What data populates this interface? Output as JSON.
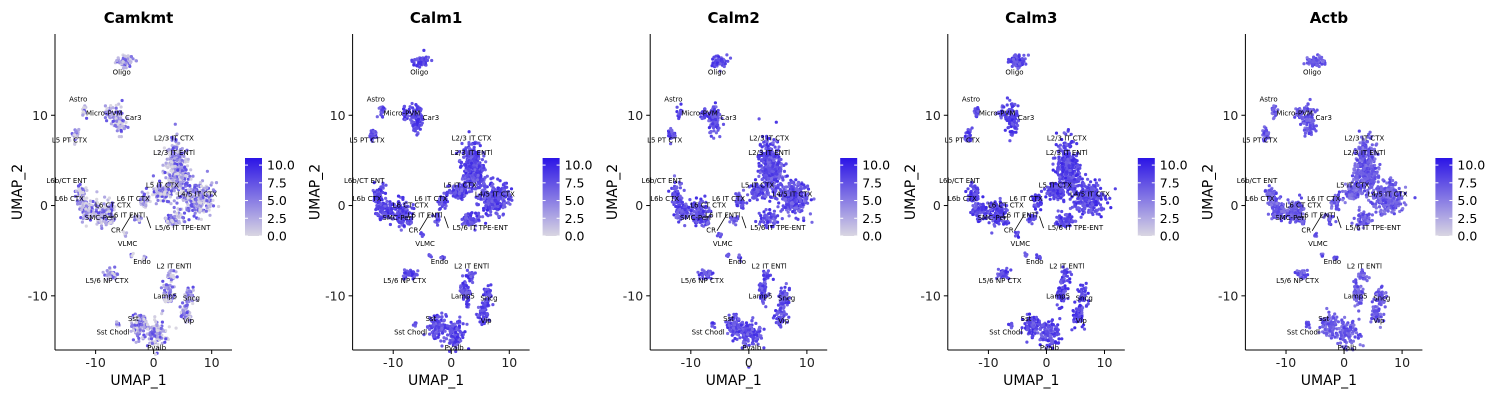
{
  "chart_data": {
    "type": "scatter",
    "xlabel": "UMAP_1",
    "ylabel": "UMAP_2",
    "xlim": [
      -17,
      13.5
    ],
    "ylim": [
      -16,
      19
    ],
    "xticks": [
      -10,
      0,
      10
    ],
    "yticks": [
      -10,
      0,
      10
    ],
    "xtick_labels": [
      "-10",
      "0",
      "10"
    ],
    "ytick_labels": [
      "-10",
      "0",
      "10"
    ],
    "grid": false,
    "colorscale": {
      "low": "#d9d6e2",
      "high": "#2b14e6"
    },
    "legend": {
      "ticks": [
        10.0,
        7.5,
        5.0,
        2.5,
        0.0
      ],
      "labels": [
        "10.0",
        "7.5",
        "5.0",
        "2.5",
        "0.0"
      ],
      "min": 0,
      "max": 11,
      "position": "right"
    },
    "panels": [
      {
        "title": "Camkmt",
        "level": 0.3
      },
      {
        "title": "Calm1",
        "level": 0.72
      },
      {
        "title": "Calm2",
        "level": 0.7
      },
      {
        "title": "Calm3",
        "level": 0.74
      },
      {
        "title": "Actb",
        "level": 0.62
      }
    ],
    "clusters": [
      {
        "name": "Oligo",
        "label_at": [
          -5.5,
          14.5
        ],
        "center": [
          -5,
          16
        ],
        "spread": [
          1.4,
          0.6
        ],
        "n": 40
      },
      {
        "name": "Astro",
        "label_at": [
          -13,
          11.5
        ],
        "center": [
          -12,
          10.4
        ],
        "spread": [
          0.4,
          0.6
        ],
        "n": 12
      },
      {
        "name": "Micro-PVM",
        "label_at": [
          -8.5,
          10
        ],
        "center": [
          -7.8,
          10.2
        ],
        "spread": [
          0.6,
          0.6
        ],
        "n": 15
      },
      {
        "name": "Car3",
        "label_at": [
          -3.5,
          9.5
        ],
        "center": [
          -6,
          9.5
        ],
        "spread": [
          1.0,
          1.4
        ],
        "n": 60
      },
      {
        "name": "L5 PT CTX",
        "label_at": [
          -14.5,
          7
        ],
        "center": [
          -13.5,
          7.8
        ],
        "spread": [
          0.5,
          0.7
        ],
        "n": 18
      },
      {
        "name": "L2/3 IT CTX",
        "label_at": [
          3.5,
          7.2
        ],
        "center": [
          3.5,
          4.5
        ],
        "spread": [
          1.6,
          2.6
        ],
        "n": 150
      },
      {
        "name": "L2/3 IT ENTl",
        "label_at": [
          3.5,
          5.6
        ],
        "center": [
          4.5,
          3.5
        ],
        "spread": [
          1.5,
          1.6
        ],
        "n": 70
      },
      {
        "name": "L6b/CT ENT",
        "label_at": [
          -15,
          2.5
        ],
        "center": [
          -12.5,
          1.2
        ],
        "spread": [
          1.0,
          1.0
        ],
        "n": 35
      },
      {
        "name": "L6b CTX",
        "label_at": [
          -14.5,
          0.5
        ],
        "center": [
          -11.5,
          -0.5
        ],
        "spread": [
          1.3,
          1.0
        ],
        "n": 55
      },
      {
        "name": "L6 CT CTX",
        "label_at": [
          -7,
          -0.2
        ],
        "center": [
          -8.5,
          -0.8
        ],
        "spread": [
          1.5,
          1.2
        ],
        "n": 70
      },
      {
        "name": "L5 IT CTX",
        "label_at": [
          1.5,
          2
        ],
        "center": [
          1.5,
          1.5
        ],
        "spread": [
          1.5,
          0.8
        ],
        "n": 60
      },
      {
        "name": "L6 IT CTX",
        "label_at": [
          -3.5,
          0.5
        ],
        "center": [
          -1.5,
          0.5
        ],
        "spread": [
          0.8,
          0.8
        ],
        "n": 25
      },
      {
        "name": "L6 IT ENTl",
        "label_at": [
          -4.5,
          -1.3
        ],
        "center": [
          -2.5,
          -1.5
        ],
        "spread": [
          0.6,
          0.5
        ],
        "n": 12
      },
      {
        "name": "L4/5 IT CTX",
        "label_at": [
          7.5,
          1
        ],
        "center": [
          7.5,
          0.8
        ],
        "spread": [
          2.4,
          1.6
        ],
        "n": 150
      },
      {
        "name": "SMC-Peri",
        "label_at": [
          -9.2,
          -1.6
        ],
        "center": [
          -7.2,
          -1.8
        ],
        "spread": [
          0.4,
          0.3
        ],
        "n": 6
      },
      {
        "name": "L5/6 IT TPE-ENT",
        "label_at": [
          5,
          -2.7
        ],
        "center": [
          3.5,
          -1.6
        ],
        "spread": [
          1.5,
          0.8
        ],
        "n": 40
      },
      {
        "name": "CR",
        "label_at": [
          -6.5,
          -3
        ],
        "center": [
          -5,
          -3.2
        ],
        "spread": [
          0.3,
          0.3
        ],
        "n": 4
      },
      {
        "name": "VLMC",
        "label_at": [
          -4.5,
          -4.5
        ],
        "center": [
          -3.7,
          -5.5
        ],
        "spread": [
          0.2,
          0.2
        ],
        "n": 3
      },
      {
        "name": "Endo",
        "label_at": [
          -2,
          -6.5
        ],
        "center": [
          -1.5,
          -5.8
        ],
        "spread": [
          0.3,
          0.3
        ],
        "n": 4
      },
      {
        "name": "L2 IT ENTl",
        "label_at": [
          3.5,
          -7
        ],
        "center": [
          3.2,
          -7.8
        ],
        "spread": [
          0.8,
          0.6
        ],
        "n": 18
      },
      {
        "name": "L5/6 NP CTX",
        "label_at": [
          -8,
          -8.6
        ],
        "center": [
          -7.3,
          -7.6
        ],
        "spread": [
          1.1,
          0.5
        ],
        "n": 25
      },
      {
        "name": "Lamp5",
        "label_at": [
          2,
          -10.3
        ],
        "center": [
          2.5,
          -9.8
        ],
        "spread": [
          0.8,
          1.2
        ],
        "n": 35
      },
      {
        "name": "Sncg",
        "label_at": [
          6.5,
          -10.5
        ],
        "center": [
          6.2,
          -10
        ],
        "spread": [
          0.8,
          1.0
        ],
        "n": 25
      },
      {
        "name": "Vip",
        "label_at": [
          6,
          -13
        ],
        "center": [
          5.5,
          -12
        ],
        "spread": [
          0.9,
          1.2
        ],
        "n": 35
      },
      {
        "name": "Sst",
        "label_at": [
          -3.5,
          -12.8
        ],
        "center": [
          -2.5,
          -13.3
        ],
        "spread": [
          1.2,
          1.2
        ],
        "n": 60
      },
      {
        "name": "Sst Chodl",
        "label_at": [
          -7,
          -14.3
        ],
        "center": [
          -6.2,
          -13.2
        ],
        "spread": [
          0.3,
          0.3
        ],
        "n": 5
      },
      {
        "name": "Pvalb",
        "label_at": [
          0.5,
          -16
        ],
        "center": [
          0.5,
          -14.2
        ],
        "spread": [
          1.6,
          1.4
        ],
        "n": 70
      }
    ]
  }
}
